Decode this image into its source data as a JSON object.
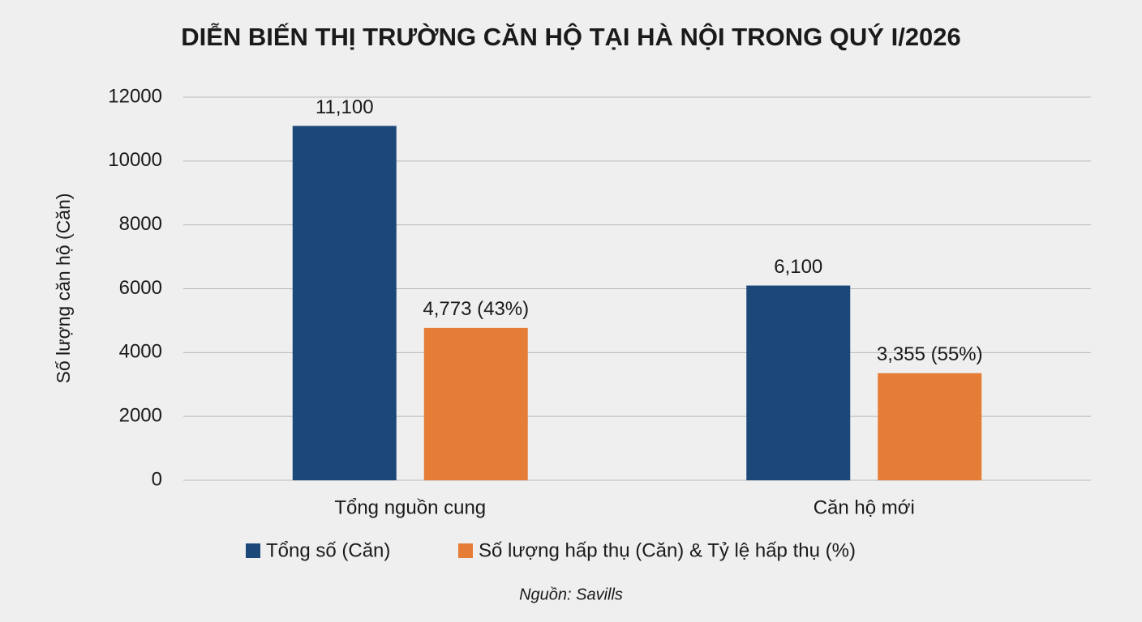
{
  "chart_data": {
    "type": "bar",
    "title": "DIỄN BIẾN THỊ TRƯỜNG CĂN HỘ TẠI HÀ NỘI TRONG QUÝ I/2026",
    "y_label": "Số lượng căn hộ (Căn)",
    "categories": [
      "Tổng nguồn cung",
      "Căn hộ mới"
    ],
    "series": [
      {
        "name": "Tổng số (Căn)",
        "color": "#1b4879",
        "values": [
          11100,
          6100
        ],
        "value_labels": [
          "11,100",
          "6,100"
        ]
      },
      {
        "name": "Số lượng hấp thụ (Căn) & Tỷ lệ hấp thụ (%)",
        "color": "#e67d36",
        "values": [
          4773,
          3355
        ],
        "value_labels": [
          "4,773 (43%)",
          "3,355 (55%)"
        ]
      }
    ],
    "ylim": [
      0,
      12000
    ],
    "yticks": [
      0,
      2000,
      4000,
      6000,
      8000,
      10000,
      12000
    ],
    "grid": true,
    "source": "Nguồn: Savills"
  }
}
